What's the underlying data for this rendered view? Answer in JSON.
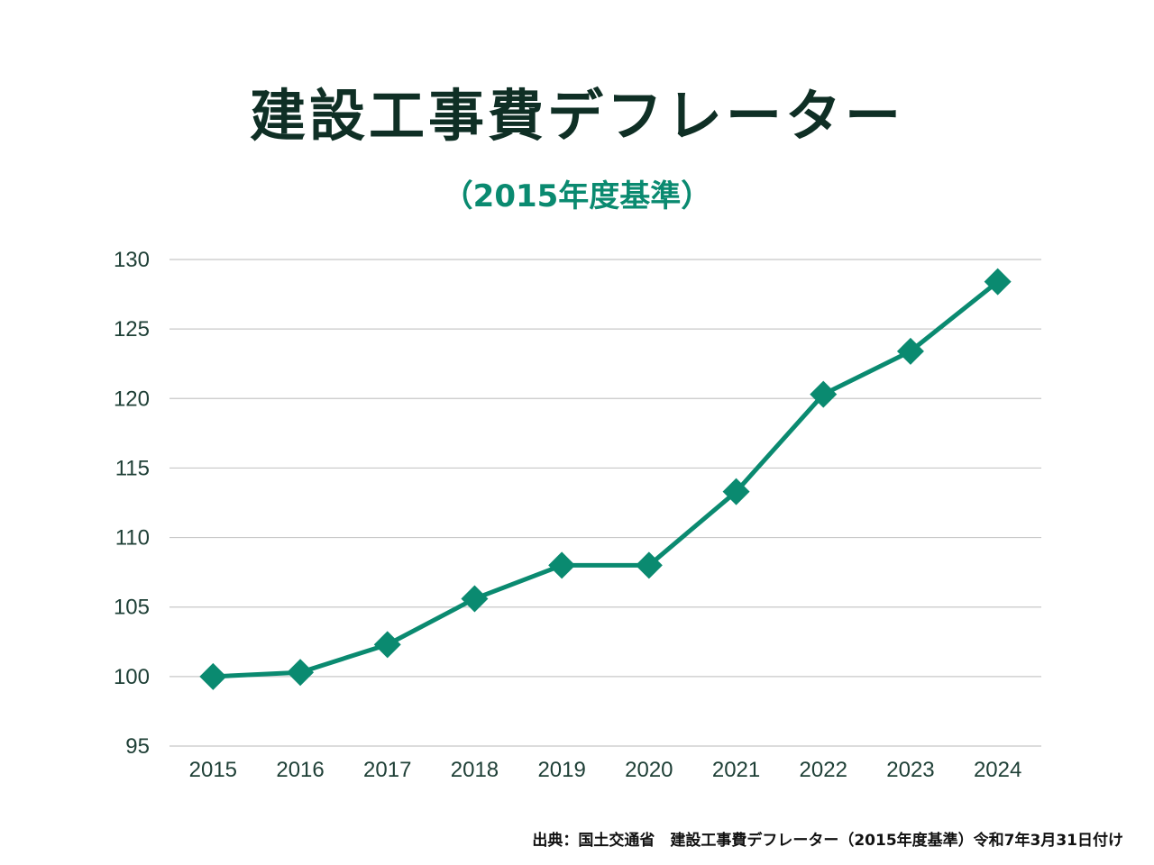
{
  "colors": {
    "title": "#0f2f25",
    "accent": "#0a8a70",
    "grid": "#c8c8c8",
    "tick_text": "#1e3f36"
  },
  "chart_data": {
    "type": "line",
    "title": "建設工事費デフレーター",
    "subtitle": "（2015年度基準）",
    "xlabel": "",
    "ylabel": "",
    "x": [
      "2015",
      "2016",
      "2017",
      "2018",
      "2019",
      "2020",
      "2021",
      "2022",
      "2023",
      "2024"
    ],
    "series": [
      {
        "values": [
          100.0,
          100.3,
          102.3,
          105.6,
          108.0,
          108.0,
          113.3,
          120.3,
          123.4,
          128.4
        ],
        "marker": "diamond",
        "color": "#0a8a70"
      }
    ],
    "ylim": [
      95,
      130
    ],
    "yticks": [
      95,
      100,
      105,
      110,
      115,
      120,
      125,
      130
    ],
    "grid": true,
    "legend": "none"
  },
  "footer": {
    "source": "出典：国土交通省　建設工事費デフレーター（2015年度基準）令和7年3月31日付け"
  }
}
